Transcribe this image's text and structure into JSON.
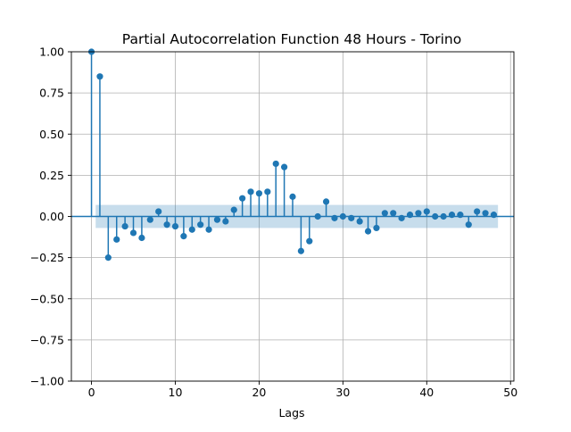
{
  "chart_data": {
    "type": "scatter",
    "title": "Partial Autocorrelation Function 48 Hours - Torino",
    "xlabel": "Lags",
    "ylabel": "",
    "xlim": [
      -2.4,
      50.4
    ],
    "ylim": [
      -1.0,
      1.0
    ],
    "xticks": [
      0,
      10,
      20,
      30,
      40,
      50
    ],
    "yticks": [
      -1.0,
      -0.75,
      -0.5,
      -0.25,
      0.0,
      0.25,
      0.5,
      0.75,
      1.0
    ],
    "ytick_labels": [
      "−1.00",
      "−0.75",
      "−0.50",
      "−0.25",
      "0.00",
      "0.25",
      "0.50",
      "0.75",
      "1.00"
    ],
    "grid": true,
    "series_color": "#1f77b4",
    "confidence_band": {
      "x_start": 0.5,
      "x_end": 48.5,
      "lower": -0.07,
      "upper": 0.07,
      "color": "#1f77b4",
      "alpha": 0.25
    },
    "lags": [
      0,
      1,
      2,
      3,
      4,
      5,
      6,
      7,
      8,
      9,
      10,
      11,
      12,
      13,
      14,
      15,
      16,
      17,
      18,
      19,
      20,
      21,
      22,
      23,
      24,
      25,
      26,
      27,
      28,
      29,
      30,
      31,
      32,
      33,
      34,
      35,
      36,
      37,
      38,
      39,
      40,
      41,
      42,
      43,
      44,
      45,
      46,
      47,
      48
    ],
    "values": [
      1.0,
      0.85,
      -0.25,
      -0.14,
      -0.06,
      -0.1,
      -0.13,
      -0.02,
      0.03,
      -0.05,
      -0.06,
      -0.12,
      -0.08,
      -0.05,
      -0.08,
      -0.02,
      -0.03,
      0.04,
      0.11,
      0.15,
      0.14,
      0.15,
      0.32,
      0.3,
      0.12,
      -0.21,
      -0.15,
      0.0,
      0.09,
      -0.01,
      0.0,
      -0.01,
      -0.03,
      -0.09,
      -0.07,
      0.02,
      0.02,
      -0.01,
      0.01,
      0.02,
      0.03,
      0.0,
      0.0,
      0.01,
      0.01,
      -0.05,
      0.03,
      0.02,
      0.01
    ]
  }
}
